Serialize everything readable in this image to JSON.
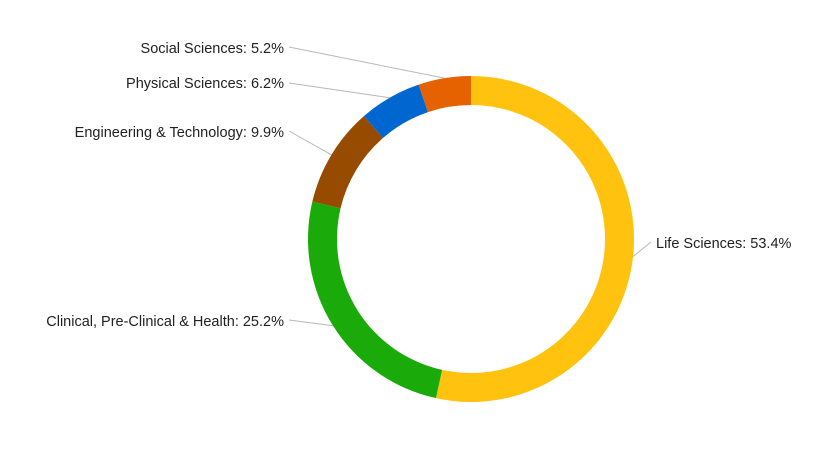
{
  "chart_data": {
    "type": "pie",
    "variant": "donut",
    "legend": "none",
    "slices": [
      {
        "name": "Life Sciences",
        "value": 53.4,
        "label": "Life Sciences: 53.4%",
        "color": "#FFC20E"
      },
      {
        "name": "Clinical, Pre-Clinical & Health",
        "value": 25.2,
        "label": "Clinical, Pre-Clinical & Health: 25.2%",
        "color": "#1AAA0A"
      },
      {
        "name": "Engineering & Technology",
        "value": 9.9,
        "label": "Engineering & Technology: 9.9%",
        "color": "#964B00"
      },
      {
        "name": "Physical Sciences",
        "value": 6.2,
        "label": "Physical Sciences: 6.2%",
        "color": "#0066D0"
      },
      {
        "name": "Social Sciences",
        "value": 5.2,
        "label": "Social Sciences: 5.2%",
        "color": "#E66100"
      }
    ]
  }
}
